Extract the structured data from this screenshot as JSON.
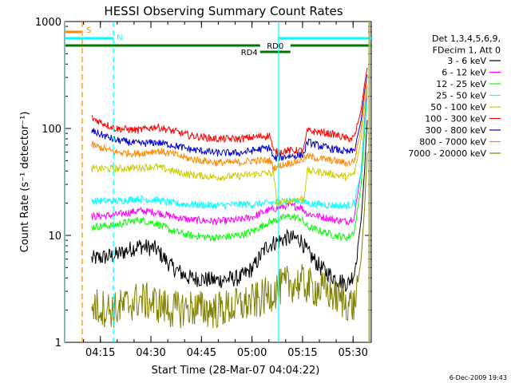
{
  "chart_data": {
    "type": "line",
    "title": "HESSI Observing Summary Count Rates",
    "xlabel": "Start Time (28-Mar-07 04:04:22)",
    "ylabel": "Count Rate (s⁻¹ detector⁻¹)",
    "yscale": "log",
    "ylim": [
      1,
      1000
    ],
    "xlim_minutes_after_start": [
      0,
      91
    ],
    "x_ticks": [
      {
        "label": "04:15",
        "minute": 10.6
      },
      {
        "label": "04:30",
        "minute": 25.6
      },
      {
        "label": "04:45",
        "minute": 40.6
      },
      {
        "label": "05:00",
        "minute": 55.6
      },
      {
        "label": "05:15",
        "minute": 70.6
      },
      {
        "label": "05:30",
        "minute": 85.6
      }
    ],
    "y_ticks": [
      {
        "label": "1",
        "value": 1
      },
      {
        "label": "10",
        "value": 10
      },
      {
        "label": "100",
        "value": 100
      },
      {
        "label": "1000",
        "value": 1000
      }
    ],
    "legend": {
      "position": "right",
      "header": [
        "Det 1,3,4,5,6,9,",
        "FDecim 1, Att 0"
      ]
    },
    "series": [
      {
        "name": "3 - 6 keV",
        "color": "#000000",
        "points": [
          [
            8,
            6
          ],
          [
            15,
            6.5
          ],
          [
            22,
            8
          ],
          [
            27,
            7.5
          ],
          [
            32,
            5
          ],
          [
            37,
            4
          ],
          [
            45,
            3.8
          ],
          [
            52,
            4
          ],
          [
            56,
            5
          ],
          [
            60,
            8
          ],
          [
            66,
            9.5
          ],
          [
            70,
            9.2
          ],
          [
            72,
            7
          ],
          [
            76,
            5
          ],
          [
            80,
            4
          ],
          [
            84,
            3.5
          ],
          [
            86,
            4.5
          ],
          [
            88,
            14
          ],
          [
            89,
            40
          ],
          [
            89.8,
            120
          ]
        ]
      },
      {
        "name": "6 - 12 keV",
        "color": "#ff00ff",
        "points": [
          [
            8,
            15
          ],
          [
            15,
            15.5
          ],
          [
            22,
            17
          ],
          [
            27,
            16.5
          ],
          [
            32,
            15
          ],
          [
            37,
            14
          ],
          [
            45,
            13.5
          ],
          [
            52,
            14
          ],
          [
            56,
            15
          ],
          [
            60,
            17
          ],
          [
            66,
            19
          ],
          [
            70,
            18.5
          ],
          [
            72,
            16
          ],
          [
            76,
            15
          ],
          [
            80,
            14
          ],
          [
            84,
            13.5
          ],
          [
            86,
            15
          ],
          [
            88,
            40
          ],
          [
            89,
            120
          ],
          [
            89.8,
            250
          ]
        ]
      },
      {
        "name": "12 - 25 keV",
        "color": "#00ff00",
        "points": [
          [
            8,
            12
          ],
          [
            15,
            12.5
          ],
          [
            22,
            14
          ],
          [
            27,
            13
          ],
          [
            32,
            11
          ],
          [
            37,
            10
          ],
          [
            45,
            9.5
          ],
          [
            52,
            10
          ],
          [
            56,
            11
          ],
          [
            60,
            13
          ],
          [
            66,
            15
          ],
          [
            70,
            14.5
          ],
          [
            72,
            12
          ],
          [
            76,
            11
          ],
          [
            80,
            10
          ],
          [
            84,
            9.5
          ],
          [
            86,
            11
          ],
          [
            88,
            30
          ],
          [
            89,
            90
          ],
          [
            89.8,
            200
          ]
        ]
      },
      {
        "name": "25 - 50 keV",
        "color": "#00ffff",
        "points": [
          [
            8,
            21
          ],
          [
            15,
            21
          ],
          [
            22,
            22
          ],
          [
            27,
            21.5
          ],
          [
            32,
            20
          ],
          [
            37,
            19.5
          ],
          [
            45,
            19
          ],
          [
            52,
            19.5
          ],
          [
            56,
            19.5
          ],
          [
            60,
            20
          ],
          [
            66,
            21
          ],
          [
            70,
            21
          ],
          [
            72,
            20
          ],
          [
            76,
            19.5
          ],
          [
            80,
            19
          ],
          [
            84,
            19
          ],
          [
            86,
            20
          ],
          [
            88,
            40
          ],
          [
            89,
            110
          ],
          [
            89.8,
            220
          ]
        ]
      },
      {
        "name": "50 - 100 keV",
        "color": "#cccc00",
        "points": [
          [
            8,
            42
          ],
          [
            15,
            42
          ],
          [
            22,
            43
          ],
          [
            27,
            44
          ],
          [
            32,
            40
          ],
          [
            37,
            37
          ],
          [
            45,
            35
          ],
          [
            52,
            36
          ],
          [
            58,
            38
          ],
          [
            62,
            38
          ],
          [
            63,
            20
          ],
          [
            66,
            21
          ],
          [
            70,
            22
          ],
          [
            71,
            22
          ],
          [
            72,
            40
          ],
          [
            76,
            39
          ],
          [
            80,
            37
          ],
          [
            84,
            35
          ],
          [
            86,
            38
          ],
          [
            88,
            80
          ],
          [
            89,
            160
          ],
          [
            89.8,
            260
          ]
        ]
      },
      {
        "name": "100 - 300 keV",
        "color": "#ff0000",
        "points": [
          [
            8,
            125
          ],
          [
            15,
            100
          ],
          [
            22,
            96
          ],
          [
            27,
            104
          ],
          [
            32,
            95
          ],
          [
            37,
            86
          ],
          [
            45,
            80
          ],
          [
            52,
            80
          ],
          [
            58,
            84
          ],
          [
            61,
            86
          ],
          [
            62,
            60
          ],
          [
            66,
            62
          ],
          [
            70,
            62
          ],
          [
            71,
            65
          ],
          [
            72,
            95
          ],
          [
            76,
            92
          ],
          [
            80,
            88
          ],
          [
            84,
            80
          ],
          [
            86,
            82
          ],
          [
            88,
            150
          ],
          [
            89,
            260
          ],
          [
            89.8,
            370
          ]
        ]
      },
      {
        "name": "300 - 800 keV",
        "color": "#0000cc",
        "points": [
          [
            8,
            95
          ],
          [
            15,
            78
          ],
          [
            22,
            72
          ],
          [
            27,
            74
          ],
          [
            32,
            70
          ],
          [
            37,
            64
          ],
          [
            45,
            59
          ],
          [
            52,
            59
          ],
          [
            58,
            64
          ],
          [
            61,
            66
          ],
          [
            62,
            52
          ],
          [
            66,
            55
          ],
          [
            70,
            56
          ],
          [
            71,
            58
          ],
          [
            72,
            75
          ],
          [
            76,
            68
          ],
          [
            80,
            64
          ],
          [
            84,
            60
          ],
          [
            86,
            62
          ],
          [
            88,
            120
          ],
          [
            89,
            220
          ],
          [
            89.8,
            320
          ]
        ]
      },
      {
        "name": "800 - 7000 keV",
        "color": "#ff8800",
        "points": [
          [
            8,
            70
          ],
          [
            15,
            60
          ],
          [
            22,
            58
          ],
          [
            27,
            62
          ],
          [
            32,
            58
          ],
          [
            37,
            52
          ],
          [
            45,
            48
          ],
          [
            52,
            48
          ],
          [
            56,
            50
          ],
          [
            61,
            50
          ],
          [
            62,
            43
          ],
          [
            66,
            47
          ],
          [
            70,
            50
          ],
          [
            71,
            52
          ],
          [
            72,
            55
          ],
          [
            76,
            52
          ],
          [
            80,
            50
          ],
          [
            84,
            47
          ],
          [
            86,
            50
          ],
          [
            88,
            100
          ],
          [
            89,
            200
          ],
          [
            89.8,
            300
          ]
        ]
      },
      {
        "name": "7000 - 20000 keV",
        "color": "#808000",
        "points": [
          [
            8,
            2.2
          ],
          [
            15,
            2.0
          ],
          [
            22,
            2.5
          ],
          [
            27,
            2.3
          ],
          [
            32,
            2.0
          ],
          [
            37,
            2.1
          ],
          [
            45,
            2.0
          ],
          [
            52,
            2.2
          ],
          [
            58,
            2.5
          ],
          [
            62,
            3
          ],
          [
            66,
            3.5
          ],
          [
            70,
            3.6
          ],
          [
            74,
            3.2
          ],
          [
            78,
            3
          ],
          [
            82,
            2.5
          ],
          [
            86,
            2.2
          ],
          [
            88,
            6
          ],
          [
            89,
            18
          ],
          [
            89.8,
            60
          ]
        ]
      }
    ],
    "flags": [
      {
        "label": "S",
        "color": "#ff8800",
        "start_minute": 0,
        "end_minute": 5,
        "line_minute": 5.2
      },
      {
        "label": "N",
        "color": "#00ffff",
        "start_minute": 0,
        "end_minute": 14.5,
        "line_minute": 14.5
      },
      {
        "label": "N",
        "color": "#00ffff",
        "start_minute": 63.5,
        "end_minute": 91,
        "line_minute": 63.5
      },
      {
        "label": "RD0",
        "color": "#007700",
        "start_minute": 0,
        "end_minute": 91,
        "gap": [
          58,
          67
        ]
      },
      {
        "label": "RD4",
        "color": "#007700",
        "start_minute": 58,
        "end_minute": 67
      }
    ],
    "vertical_markers": [
      {
        "minute": 0.1,
        "color": "#00ffff",
        "style": "solid"
      },
      {
        "minute": 5.2,
        "color": "#ff8800",
        "style": "dashed"
      },
      {
        "minute": 14.5,
        "color": "#00ffff",
        "style": "dashed"
      },
      {
        "minute": 63.5,
        "color": "#00ffff",
        "style": "solid"
      },
      {
        "minute": 90.3,
        "color": "#ff8800",
        "style": "solid"
      },
      {
        "minute": 90.6,
        "color": "#00ffff",
        "style": "solid"
      }
    ],
    "grid": false
  },
  "footer": {
    "date": "6-Dec-2009 19:43"
  }
}
